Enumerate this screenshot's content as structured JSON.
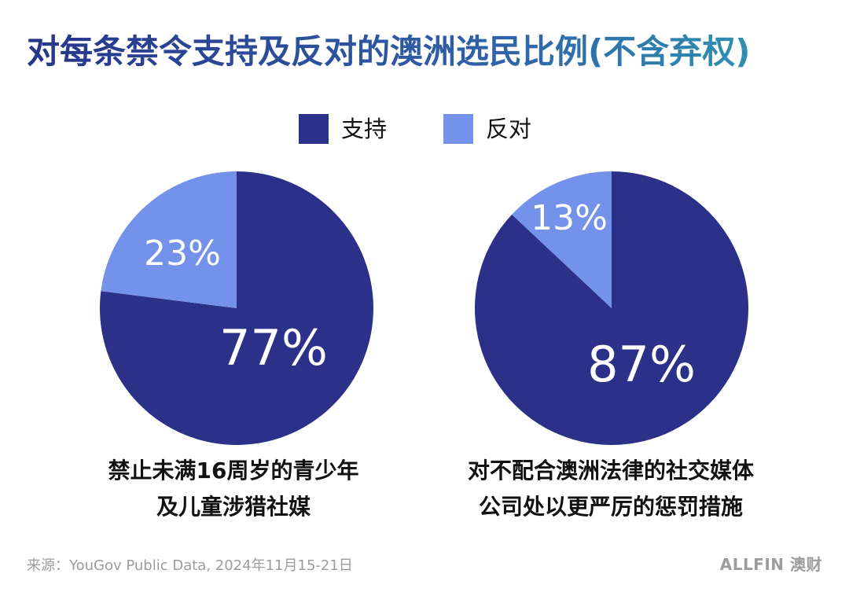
{
  "title": "对每条禁令支持及反对的澳洲选民比例(不含弃权)",
  "colors": {
    "support": "#2b3188",
    "oppose": "#7592ea"
  },
  "legend": [
    {
      "label": "支持",
      "color": "#2b3188"
    },
    {
      "label": "反对",
      "color": "#7592ea"
    }
  ],
  "chart_data": [
    {
      "type": "pie",
      "title": "",
      "labels": [
        "支持",
        "反对"
      ],
      "values": [
        77,
        23
      ],
      "value_labels": [
        "77%",
        "23%"
      ],
      "caption": [
        "禁止未满16周岁的青少年",
        "及儿童涉猎社媒"
      ]
    },
    {
      "type": "pie",
      "title": "",
      "labels": [
        "支持",
        "反对"
      ],
      "values": [
        87,
        13
      ],
      "value_labels": [
        "87%",
        "13%"
      ],
      "caption": [
        "对不配合澳洲法律的社交媒体",
        "公司处以更严厉的惩罚措施"
      ]
    }
  ],
  "source": "来源：YouGov Public Data, 2024年11月15-21日",
  "logo": "ALLFIN 澳财"
}
